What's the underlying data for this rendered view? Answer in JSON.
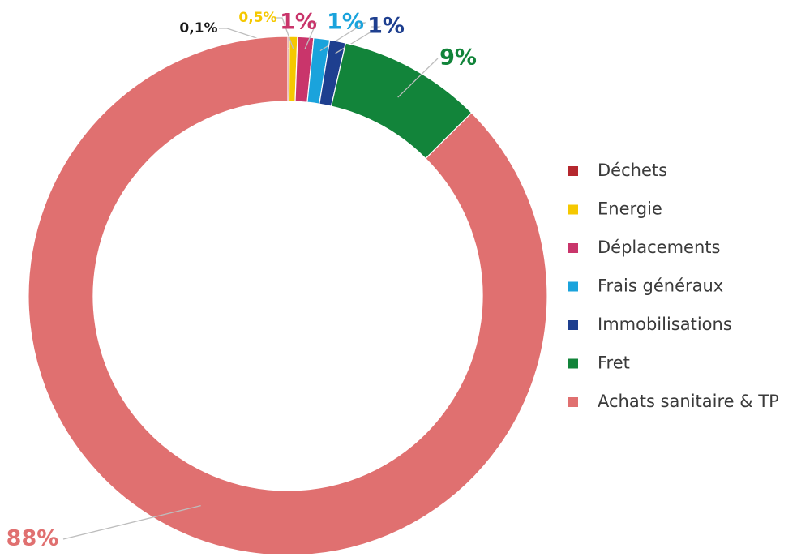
{
  "chart_data": {
    "type": "donut",
    "categories": [
      "Déchets",
      "Energie",
      "Déplacements",
      "Frais généraux",
      "Immobilisations",
      "Fret",
      "Achats sanitaire & TP"
    ],
    "values": [
      0.1,
      0.5,
      1,
      1,
      1,
      9,
      88
    ],
    "value_labels": [
      "0,1%",
      "0,5%",
      "1%",
      "1%",
      "1%",
      "9%",
      "88%"
    ],
    "colors": [
      "#b5282e",
      "#f5c800",
      "#c9356b",
      "#1aa3dc",
      "#1e3f8f",
      "#12843a",
      "#e07070"
    ],
    "legend": "right"
  }
}
